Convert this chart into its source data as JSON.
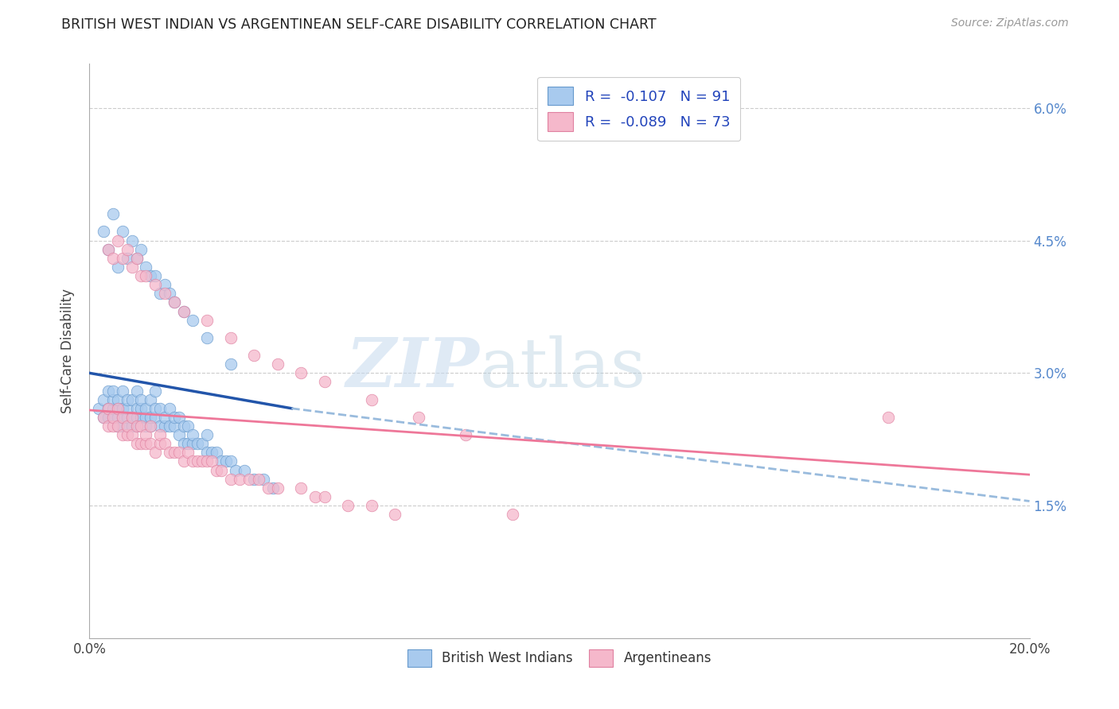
{
  "title": "BRITISH WEST INDIAN VS ARGENTINEAN SELF-CARE DISABILITY CORRELATION CHART",
  "source": "Source: ZipAtlas.com",
  "ylabel": "Self-Care Disability",
  "xlim": [
    0.0,
    0.2
  ],
  "ylim": [
    0.0,
    0.065
  ],
  "yticks": [
    0.015,
    0.03,
    0.045,
    0.06
  ],
  "ytick_labels": [
    "1.5%",
    "3.0%",
    "4.5%",
    "6.0%"
  ],
  "xticks": [
    0.0,
    0.04,
    0.08,
    0.12,
    0.16,
    0.2
  ],
  "xtick_labels": [
    "0.0%",
    "",
    "",
    "",
    "",
    "20.0%"
  ],
  "blue_color": "#A8CAEE",
  "pink_color": "#F5B8CB",
  "blue_edge_color": "#6699CC",
  "pink_edge_color": "#E080A0",
  "blue_line_color": "#2255AA",
  "pink_line_color": "#EE7799",
  "dashed_line_color": "#99BBDD",
  "blue_x": [
    0.002,
    0.003,
    0.003,
    0.004,
    0.004,
    0.004,
    0.005,
    0.005,
    0.005,
    0.005,
    0.006,
    0.006,
    0.006,
    0.006,
    0.007,
    0.007,
    0.007,
    0.007,
    0.008,
    0.008,
    0.008,
    0.008,
    0.009,
    0.009,
    0.009,
    0.01,
    0.01,
    0.01,
    0.01,
    0.011,
    0.011,
    0.011,
    0.012,
    0.012,
    0.012,
    0.013,
    0.013,
    0.013,
    0.014,
    0.014,
    0.014,
    0.015,
    0.015,
    0.016,
    0.016,
    0.017,
    0.017,
    0.018,
    0.018,
    0.019,
    0.019,
    0.02,
    0.02,
    0.021,
    0.021,
    0.022,
    0.022,
    0.023,
    0.024,
    0.025,
    0.025,
    0.026,
    0.027,
    0.028,
    0.029,
    0.03,
    0.031,
    0.033,
    0.035,
    0.037,
    0.039,
    0.003,
    0.004,
    0.005,
    0.006,
    0.007,
    0.008,
    0.009,
    0.01,
    0.011,
    0.012,
    0.013,
    0.014,
    0.015,
    0.016,
    0.017,
    0.018,
    0.02,
    0.022,
    0.025,
    0.03
  ],
  "blue_y": [
    0.026,
    0.025,
    0.027,
    0.025,
    0.026,
    0.028,
    0.025,
    0.026,
    0.027,
    0.028,
    0.024,
    0.025,
    0.026,
    0.027,
    0.024,
    0.025,
    0.026,
    0.028,
    0.024,
    0.025,
    0.026,
    0.027,
    0.024,
    0.025,
    0.027,
    0.024,
    0.025,
    0.026,
    0.028,
    0.025,
    0.026,
    0.027,
    0.024,
    0.025,
    0.026,
    0.024,
    0.025,
    0.027,
    0.025,
    0.026,
    0.028,
    0.024,
    0.026,
    0.024,
    0.025,
    0.024,
    0.026,
    0.024,
    0.025,
    0.023,
    0.025,
    0.022,
    0.024,
    0.022,
    0.024,
    0.022,
    0.023,
    0.022,
    0.022,
    0.021,
    0.023,
    0.021,
    0.021,
    0.02,
    0.02,
    0.02,
    0.019,
    0.019,
    0.018,
    0.018,
    0.017,
    0.046,
    0.044,
    0.048,
    0.042,
    0.046,
    0.043,
    0.045,
    0.043,
    0.044,
    0.042,
    0.041,
    0.041,
    0.039,
    0.04,
    0.039,
    0.038,
    0.037,
    0.036,
    0.034,
    0.031
  ],
  "pink_x": [
    0.003,
    0.004,
    0.004,
    0.005,
    0.005,
    0.006,
    0.006,
    0.007,
    0.007,
    0.008,
    0.008,
    0.009,
    0.009,
    0.01,
    0.01,
    0.011,
    0.011,
    0.012,
    0.012,
    0.013,
    0.013,
    0.014,
    0.015,
    0.015,
    0.016,
    0.017,
    0.018,
    0.019,
    0.02,
    0.021,
    0.022,
    0.023,
    0.024,
    0.025,
    0.026,
    0.027,
    0.028,
    0.03,
    0.032,
    0.034,
    0.036,
    0.038,
    0.04,
    0.045,
    0.048,
    0.05,
    0.055,
    0.06,
    0.065,
    0.09,
    0.17,
    0.004,
    0.005,
    0.006,
    0.007,
    0.008,
    0.009,
    0.01,
    0.011,
    0.012,
    0.014,
    0.016,
    0.018,
    0.02,
    0.025,
    0.03,
    0.035,
    0.04,
    0.045,
    0.05,
    0.06,
    0.07,
    0.08
  ],
  "pink_y": [
    0.025,
    0.024,
    0.026,
    0.024,
    0.025,
    0.024,
    0.026,
    0.023,
    0.025,
    0.023,
    0.024,
    0.023,
    0.025,
    0.022,
    0.024,
    0.022,
    0.024,
    0.022,
    0.023,
    0.022,
    0.024,
    0.021,
    0.022,
    0.023,
    0.022,
    0.021,
    0.021,
    0.021,
    0.02,
    0.021,
    0.02,
    0.02,
    0.02,
    0.02,
    0.02,
    0.019,
    0.019,
    0.018,
    0.018,
    0.018,
    0.018,
    0.017,
    0.017,
    0.017,
    0.016,
    0.016,
    0.015,
    0.015,
    0.014,
    0.014,
    0.025,
    0.044,
    0.043,
    0.045,
    0.043,
    0.044,
    0.042,
    0.043,
    0.041,
    0.041,
    0.04,
    0.039,
    0.038,
    0.037,
    0.036,
    0.034,
    0.032,
    0.031,
    0.03,
    0.029,
    0.027,
    0.025,
    0.023
  ],
  "blue_line_x0": 0.0,
  "blue_line_x1": 0.043,
  "blue_line_y0": 0.03,
  "blue_line_y1": 0.026,
  "dash_line_x0": 0.043,
  "dash_line_x1": 0.2,
  "dash_line_y0": 0.026,
  "dash_line_y1": 0.0155,
  "pink_line_x0": 0.0,
  "pink_line_x1": 0.2,
  "pink_line_y0": 0.0258,
  "pink_line_y1": 0.0185
}
